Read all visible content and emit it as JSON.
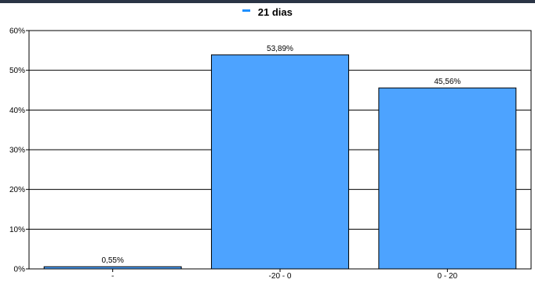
{
  "chart_data": {
    "type": "bar",
    "categories": [
      "-",
      "-20 - 0",
      "0 - 20"
    ],
    "series": [
      {
        "name": "21 dias",
        "values": [
          0.55,
          53.89,
          45.56
        ],
        "labels": [
          "0,55%",
          "53,89%",
          "45,56%"
        ]
      }
    ],
    "ylim": [
      0,
      60
    ],
    "yticks": [
      "0%",
      "10%",
      "20%",
      "30%",
      "40%",
      "50%",
      "60%"
    ],
    "grid": true,
    "legend_position": "top-center",
    "colors": {
      "bar_fill": "#4da3ff",
      "legend_swatch": "#1e90ff",
      "bar_stroke": "#000000",
      "top_bar": "#2a3445"
    }
  }
}
